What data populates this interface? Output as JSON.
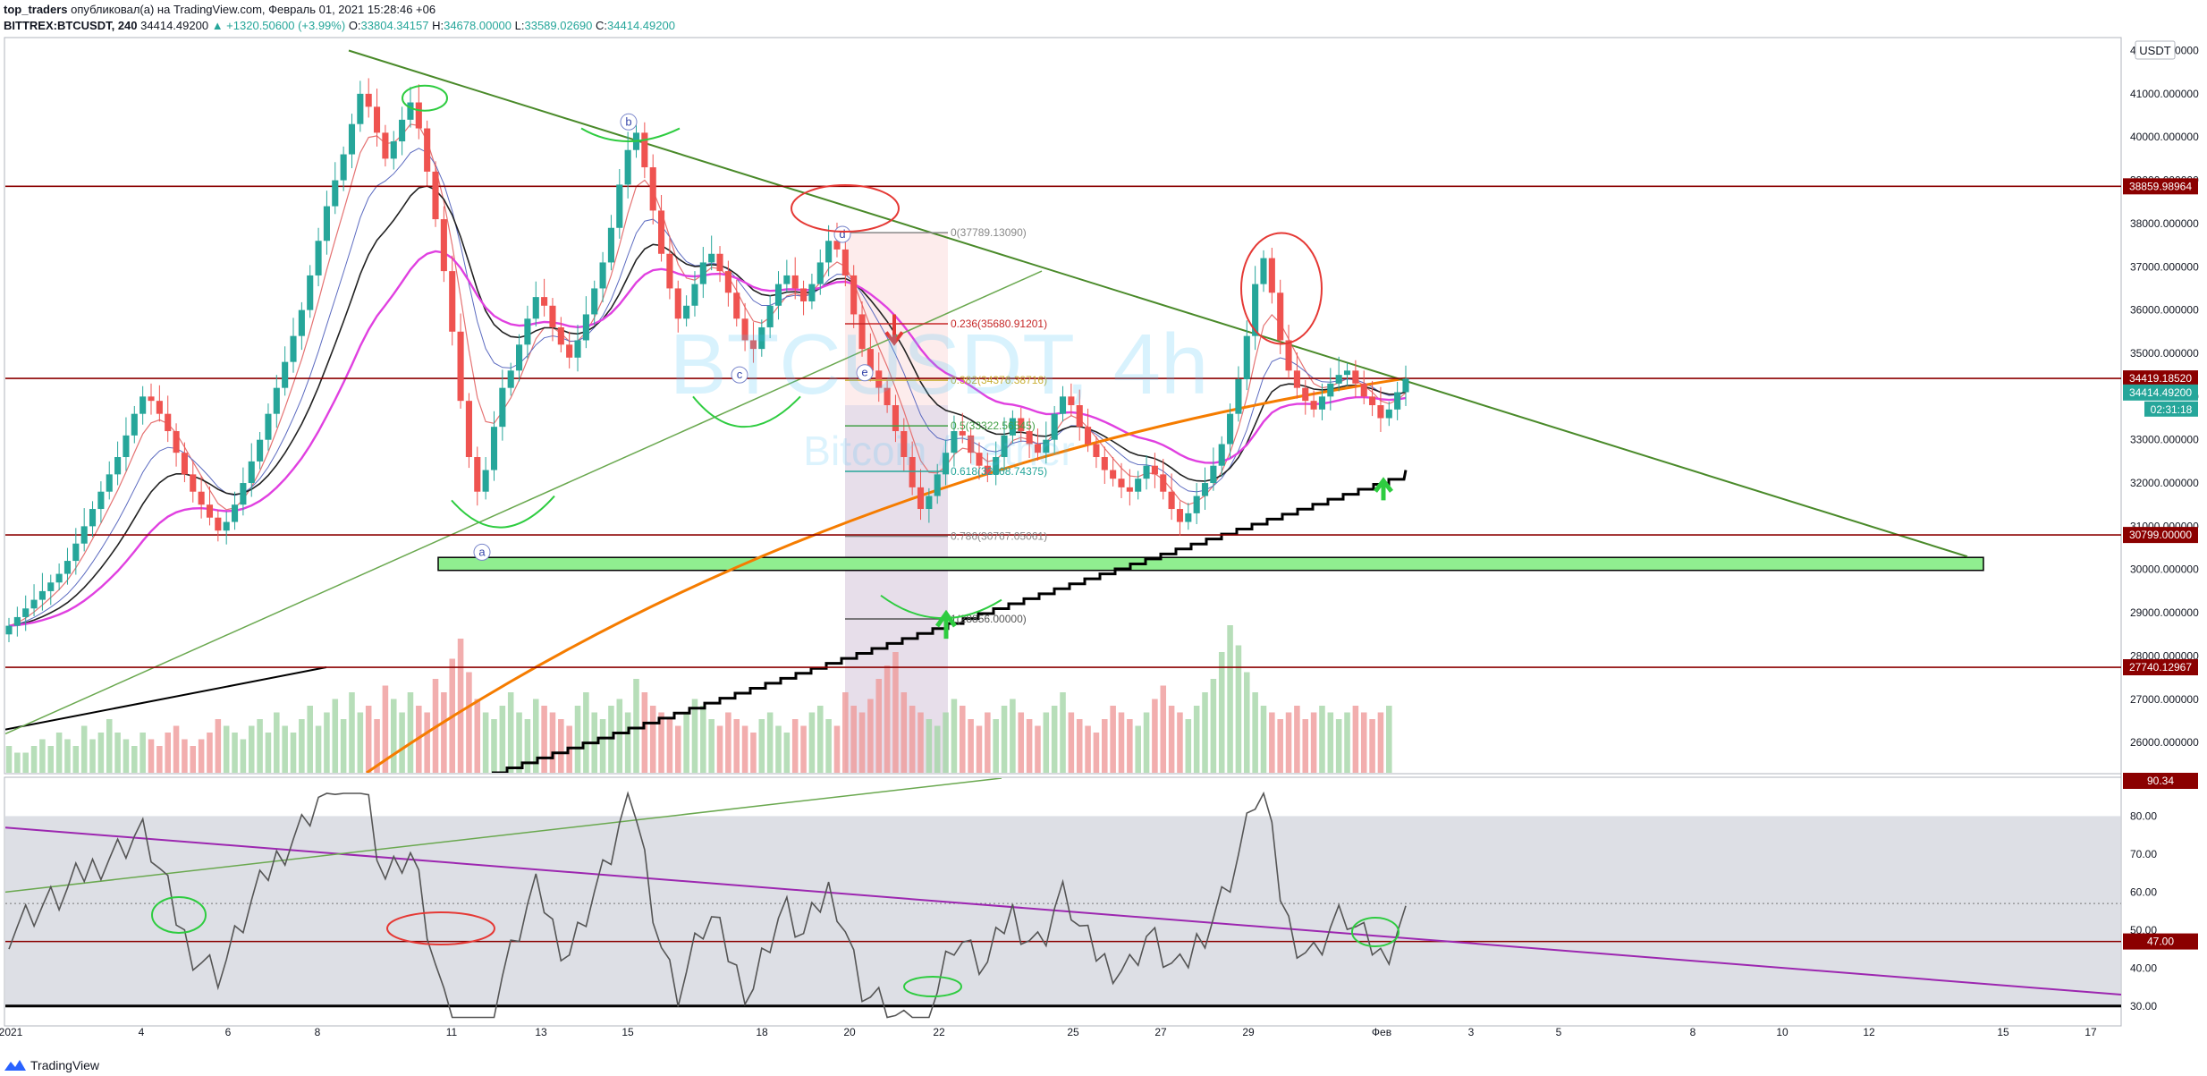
{
  "header": {
    "author": "top_traders",
    "published_text": "опубликовал(а) на TradingView.com, Февраль 01, 2021 15:28:46 +06",
    "symbol": "BITTREX:BTCUSDT, 240",
    "last": "34414.49200",
    "change": "▲ +1320.50600 (+3.99%)",
    "open_label": "O:",
    "open": "33804.34157",
    "high_label": "H:",
    "high": "34678.00000",
    "low_label": "L:",
    "low": "33589.02690",
    "close_label": "C:",
    "close": "34414.49200"
  },
  "currency": "USDT",
  "watermark": {
    "symbol": "BTCUSDT, 4h",
    "name": "Bitcoin / Tether"
  },
  "footer": {
    "brand": "TradingView"
  },
  "colors": {
    "up": "#26a69a",
    "down": "#ef5350",
    "level": "#8b0000",
    "trend": "#4a8a2a",
    "ma_magenta": "#e040e0",
    "ma_orange": "#f57c00",
    "rsi_line": "#555555",
    "rsi_trend": "#9c27b0",
    "zone": "#90ee90"
  },
  "chart_data": {
    "type": "candlestick",
    "title": "BITTREX:BTCUSDT, 240",
    "price_axis": {
      "ticks": [
        26000,
        27000,
        28000,
        29000,
        30000,
        31000,
        32000,
        33000,
        34000,
        35000,
        36000,
        37000,
        38000,
        39000,
        40000,
        41000,
        42000
      ],
      "tick_labels": [
        "26000.000000",
        "27000.000000",
        "28000.000000",
        "29000.000000",
        "30000.000000",
        "31000.000000",
        "32000.000000",
        "33000.000000",
        "34000.000000",
        "35000.000000",
        "36000.000000",
        "37000.000000",
        "38000.000000",
        "39000.000000",
        "40000.000000",
        "41000.000000",
        "42000.000000"
      ],
      "range": [
        25300,
        42300
      ]
    },
    "time_axis": {
      "labels": [
        "2021",
        "4",
        "6",
        "8",
        "11",
        "13",
        "15",
        "18",
        "20",
        "22",
        "25",
        "27",
        "29",
        "Фев",
        "3",
        "5",
        "8",
        "10",
        "12",
        "15",
        "17"
      ]
    },
    "horizontal_levels": [
      {
        "price": 38859.98964,
        "label": "38859.98964"
      },
      {
        "price": 34419.1852,
        "label": "34419.18520"
      },
      {
        "price": 30799.0,
        "label": "30799.00000"
      },
      {
        "price": 27740.12967,
        "label": "27740.12967"
      }
    ],
    "current_price": {
      "label": "34414.49200",
      "countdown": "02:31:18"
    },
    "support_zone": [
      29980,
      30280
    ],
    "fibonacci": [
      {
        "ratio": "0",
        "price": "37789.13090",
        "text": "0(37789.13090)"
      },
      {
        "ratio": "0.236",
        "price": "35680.91201",
        "text": "0.236(35680.91201)"
      },
      {
        "ratio": "0.382",
        "price": "34376.38716",
        "text": "0.382(34376.38716)"
      },
      {
        "ratio": "0.5",
        "price": "33322.56545",
        "text": "0.5(33322.56545)"
      },
      {
        "ratio": "0.618",
        "price": "32268.74375",
        "text": "0.618(32268.74375)"
      },
      {
        "ratio": "0.786",
        "price": "30767.05061",
        "text": "0.786(30767.05061)"
      },
      {
        "ratio": "1",
        "price": "28856.00000",
        "text": "1(28856.00000)"
      }
    ],
    "wave_labels": [
      "a",
      "b",
      "c",
      "d",
      "e"
    ],
    "closes": [
      28700,
      28900,
      29100,
      29300,
      29500,
      29700,
      29900,
      30200,
      30600,
      31000,
      31400,
      31800,
      32200,
      32600,
      33100,
      33600,
      34000,
      33900,
      33600,
      33200,
      32700,
      32200,
      31800,
      31500,
      31200,
      30900,
      31100,
      31500,
      32000,
      32500,
      33000,
      33600,
      34200,
      34800,
      35400,
      36000,
      36800,
      37600,
      38400,
      39000,
      39600,
      40300,
      41000,
      40700,
      40100,
      39500,
      39900,
      40400,
      40800,
      40200,
      39200,
      38100,
      36900,
      35500,
      33900,
      32600,
      31800,
      32300,
      33300,
      34200,
      34600,
      35200,
      35800,
      36300,
      36100,
      35600,
      35200,
      34900,
      35300,
      35900,
      36500,
      37100,
      37900,
      38900,
      39700,
      40100,
      39300,
      38300,
      37300,
      36500,
      35800,
      36100,
      36600,
      37100,
      37300,
      36900,
      36400,
      35800,
      35300,
      35100,
      35600,
      36100,
      36600,
      36800,
      36500,
      36200,
      36600,
      37100,
      37600,
      37400,
      36800,
      35900,
      35100,
      34600,
      34200,
      33800,
      33200,
      32600,
      31900,
      31400,
      31700,
      32200,
      32700,
      33200,
      33100,
      32700,
      32400,
      32200,
      32600,
      33100,
      33500,
      33200,
      32900,
      32700,
      33000,
      33600,
      34000,
      33800,
      33300,
      32900,
      32600,
      32300,
      32100,
      31900,
      31800,
      32100,
      32400,
      32200,
      31800,
      31400,
      31100,
      31300,
      31700,
      32000,
      32400,
      32900,
      33600,
      34400,
      35400,
      36600,
      37200,
      36400,
      35300,
      34600,
      34200,
      33900,
      33700,
      34000,
      34300,
      34500,
      34600,
      34300,
      34000,
      33800,
      33500,
      33700,
      34100,
      34414
    ],
    "volume_hint": [
      4,
      3,
      3,
      4,
      5,
      4,
      6,
      5,
      4,
      7,
      5,
      6,
      8,
      6,
      5,
      4,
      6,
      5,
      4,
      6,
      7,
      5,
      4,
      5,
      6,
      8,
      7,
      6,
      5,
      7,
      8,
      6,
      9,
      7,
      6,
      8,
      10,
      7,
      9,
      11,
      8,
      12,
      9,
      10,
      8,
      13,
      11,
      9,
      12,
      10,
      9,
      14,
      12,
      17,
      20,
      15,
      11,
      9,
      8,
      10,
      12,
      9,
      8,
      11,
      10,
      9,
      8,
      7,
      10,
      12,
      9,
      8,
      10,
      11,
      9,
      14,
      12,
      10,
      9,
      8,
      7,
      9,
      11,
      10,
      8,
      7,
      9,
      8,
      7,
      6,
      8,
      9,
      7,
      6,
      8,
      7,
      9,
      10,
      8,
      7,
      12,
      10,
      9,
      11,
      14,
      16,
      18,
      12,
      10,
      9,
      8,
      7,
      9,
      11,
      10,
      8,
      7,
      9,
      8,
      10,
      11,
      9,
      8,
      7,
      9,
      10,
      12,
      9,
      8,
      7,
      6,
      8,
      10,
      9,
      8,
      7,
      9,
      11,
      13,
      10,
      9,
      8,
      10,
      12,
      14,
      18,
      22,
      19,
      15,
      12,
      10,
      9,
      8,
      9,
      10,
      8,
      9,
      10,
      9,
      8,
      9,
      10,
      9,
      8,
      9,
      10
    ],
    "rsi": {
      "ticks": [
        30,
        40,
        50,
        60,
        70,
        80
      ],
      "tick_labels": [
        "30.00",
        "40.00",
        "50.00",
        "60.00",
        "70.00",
        "80.00"
      ],
      "range": [
        25,
        90
      ],
      "band": [
        30,
        80
      ],
      "level": 47.0,
      "level_label": "47.00",
      "top_level_label": "90.34"
    }
  }
}
